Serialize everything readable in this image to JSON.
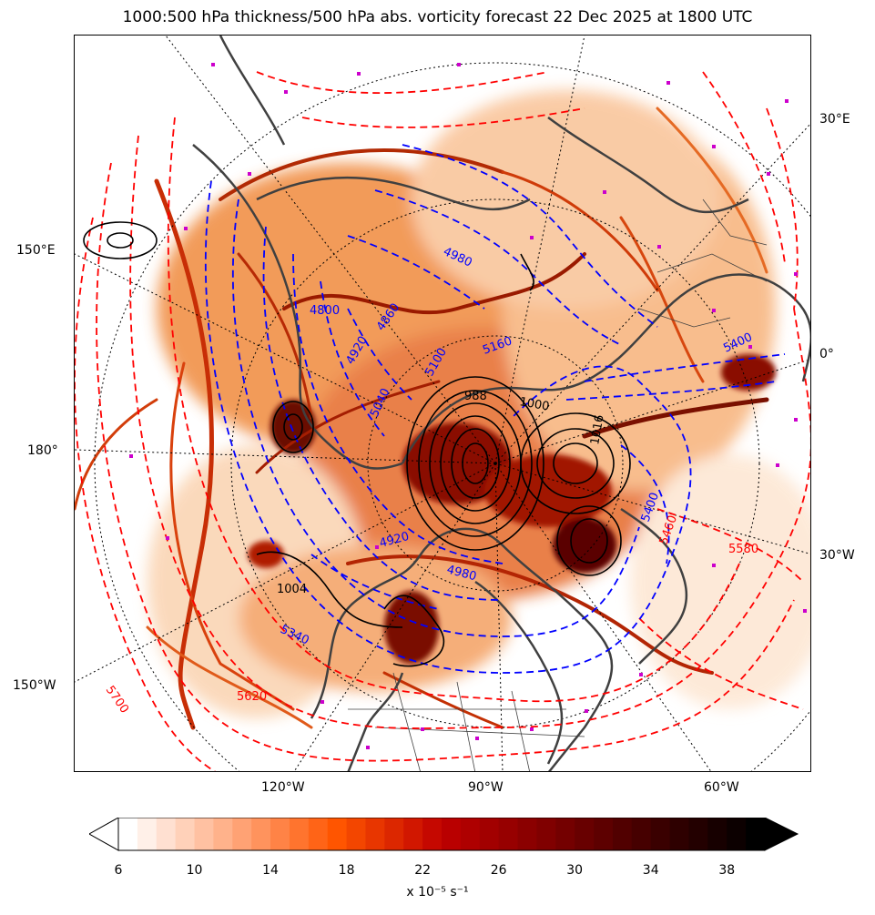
{
  "title": "1000:500 hPa thickness/500 hPa abs. vorticity forecast 22 Dec 2025 at 1800 UTC",
  "map": {
    "projection": "polar stereographic (Northern Hemisphere)",
    "fill_field": "500 hPa absolute vorticity",
    "thickness_contours_blue": [
      "4800",
      "4860",
      "4920",
      "4980",
      "5040",
      "5100",
      "5160",
      "5340",
      "5400"
    ],
    "thickness_contours_red": [
      "5460",
      "5580",
      "5620",
      "5700"
    ],
    "pressure_contours_black": [
      "988",
      "1000",
      "1004",
      "1016"
    ],
    "colors": {
      "thickness_cold": "#0000ff",
      "thickness_warm": "#ff0000",
      "pressure": "#000000",
      "coastline": "#404040",
      "markers": "#cc00cc"
    }
  },
  "gridline_labels": {
    "left": [
      "150°E",
      "180°",
      "150°W"
    ],
    "right": [
      "30°E",
      "0°",
      "30°W"
    ],
    "bottom": [
      "120°W",
      "90°W",
      "60°W"
    ]
  },
  "colorbar": {
    "ticks": [
      "6",
      "10",
      "14",
      "18",
      "22",
      "26",
      "30",
      "34",
      "38"
    ],
    "label": "x 10⁻⁵ s⁻¹",
    "min": 6,
    "max": 40,
    "step": 1,
    "extend": "both",
    "cmap": "gist_heat_r"
  }
}
